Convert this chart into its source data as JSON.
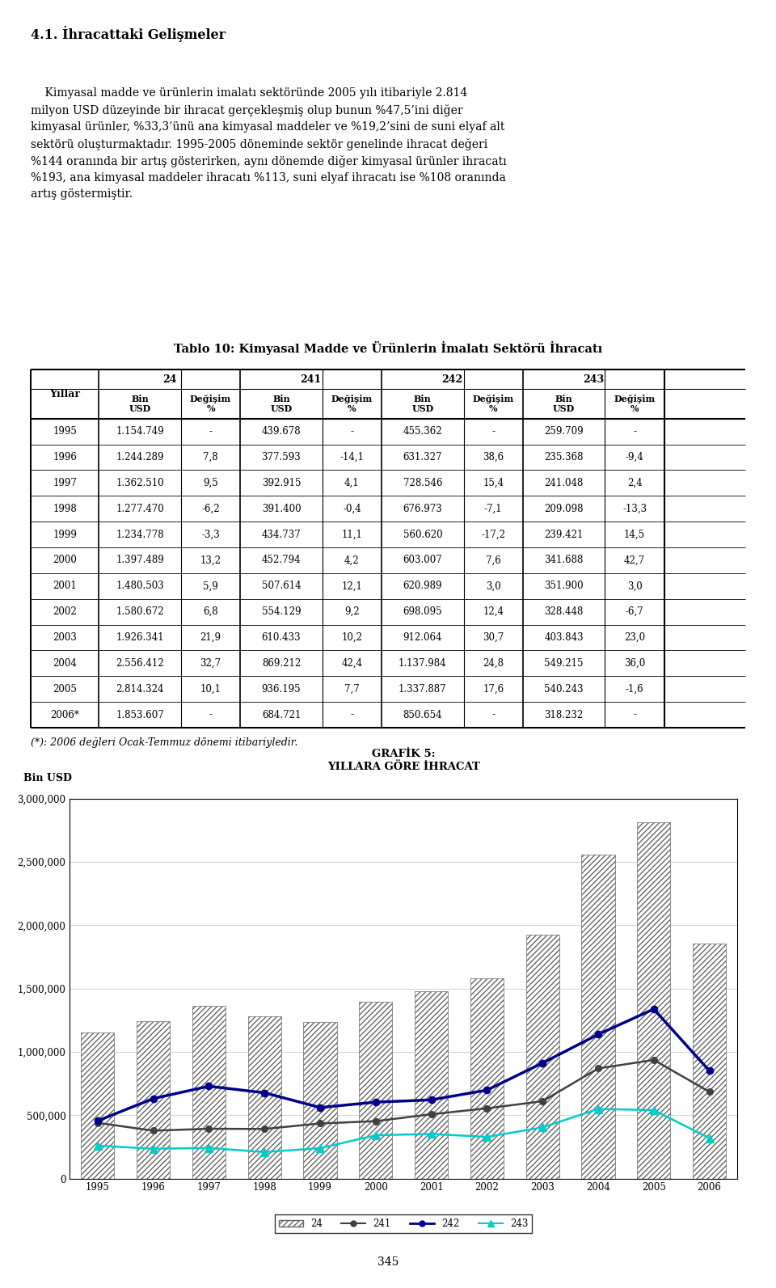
{
  "title_section": "4.1. İhracattaki Gelişmeler",
  "paragraph_lines": [
    "    Kimyasal madde ve ürünlerin imalatı sektöründe 2005 yılı itibariyle 2.814",
    "milyon USD düzeyinde bir ihracat gerçekleşmiş olup bunun %47,5’ini diğer",
    "kimyasal ürünler, %33,3’ünü ana kimyasal maddeler ve %19,2’sini de suni elyaf alt",
    "sektörü oluşturmaktadır. 1995-2005 döneminde sektör genelinde ihracat değeri",
    "%144 oranında bir artış gösterirken, aynı dönemde diğer kimyasal ürünler ihracatı",
    "%193, ana kimyasal maddeler ihracatı %113, suni elyaf ihracatı ise %108 oranında",
    "artış göstermiştir."
  ],
  "table_title": "Tablo 10: Kimyasal Madde ve Ürünlerin İmalatı Sektörü İhracatı",
  "table_rows": [
    [
      "1995",
      "1.154.749",
      "-",
      "439.678",
      "-",
      "455.362",
      "-",
      "259.709",
      "-"
    ],
    [
      "1996",
      "1.244.289",
      "7,8",
      "377.593",
      "-14,1",
      "631.327",
      "38,6",
      "235.368",
      "-9,4"
    ],
    [
      "1997",
      "1.362.510",
      "9,5",
      "392.915",
      "4,1",
      "728.546",
      "15,4",
      "241.048",
      "2,4"
    ],
    [
      "1998",
      "1.277.470",
      "-6,2",
      "391.400",
      "-0,4",
      "676.973",
      "-7,1",
      "209.098",
      "-13,3"
    ],
    [
      "1999",
      "1.234.778",
      "-3,3",
      "434.737",
      "11,1",
      "560.620",
      "-17,2",
      "239.421",
      "14,5"
    ],
    [
      "2000",
      "1.397.489",
      "13,2",
      "452.794",
      "4,2",
      "603.007",
      "7,6",
      "341.688",
      "42,7"
    ],
    [
      "2001",
      "1.480.503",
      "5,9",
      "507.614",
      "12,1",
      "620.989",
      "3,0",
      "351.900",
      "3,0"
    ],
    [
      "2002",
      "1.580.672",
      "6,8",
      "554.129",
      "9,2",
      "698.095",
      "12,4",
      "328.448",
      "-6,7"
    ],
    [
      "2003",
      "1.926.341",
      "21,9",
      "610.433",
      "10,2",
      "912.064",
      "30,7",
      "403.843",
      "23,0"
    ],
    [
      "2004",
      "2.556.412",
      "32,7",
      "869.212",
      "42,4",
      "1.137.984",
      "24,8",
      "549.215",
      "36,0"
    ],
    [
      "2005",
      "2.814.324",
      "10,1",
      "936.195",
      "7,7",
      "1.337.887",
      "17,6",
      "540.243",
      "-1,6"
    ],
    [
      "2006*",
      "1.853.607",
      "-",
      "684.721",
      "-",
      "850.654",
      "-",
      "318.232",
      "-"
    ]
  ],
  "footnote": "(*): 2006 değleri Ocak-Temmuz dönemi itibariyledir.",
  "chart_title_line1": "GRAFİK 5:",
  "chart_title_line2": "YILLARA GÖRE İHRACAT",
  "chart_ylabel": "Bin USD",
  "years": [
    1995,
    1996,
    1997,
    1998,
    1999,
    2000,
    2001,
    2002,
    2003,
    2004,
    2005,
    2006
  ],
  "series_24": [
    1154749,
    1244289,
    1362510,
    1277470,
    1234778,
    1397489,
    1480503,
    1580672,
    1926341,
    2556412,
    2814324,
    1853607
  ],
  "series_241": [
    439678,
    377593,
    392915,
    391400,
    434737,
    452794,
    507614,
    554129,
    610433,
    869212,
    936195,
    684721
  ],
  "series_242": [
    455362,
    631327,
    728546,
    676973,
    560620,
    603007,
    620989,
    698095,
    912064,
    1137984,
    1337887,
    850654
  ],
  "series_243": [
    259709,
    235368,
    241048,
    209098,
    239421,
    341688,
    351900,
    328448,
    403843,
    549215,
    540243,
    318232
  ],
  "line_241_color": "#404040",
  "line_242_color": "#00008B",
  "line_243_color": "#00CCCC",
  "yticks": [
    0,
    500000,
    1000000,
    1500000,
    2000000,
    2500000,
    3000000
  ],
  "ytick_labels": [
    "0",
    "500,000",
    "1,000,000",
    "1,500,000",
    "2,000,000",
    "2,500,000",
    "3,000,000"
  ],
  "page_number": "345"
}
